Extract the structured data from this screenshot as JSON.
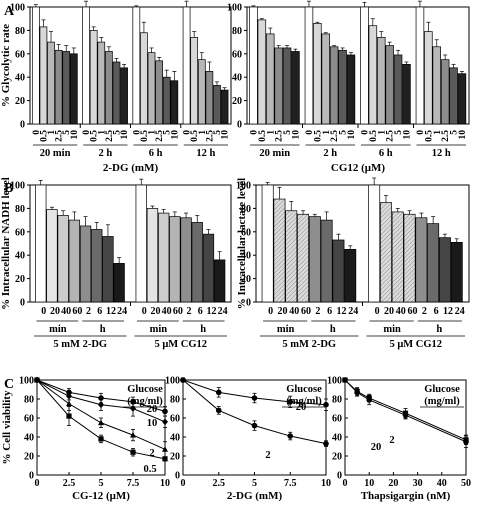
{
  "panel_letters": [
    "A",
    "B",
    "C"
  ],
  "chart_data": [
    {
      "type": "bar",
      "panel": "A",
      "ylabel": "% Glycolytic rate",
      "ylim": [
        0,
        100
      ],
      "yticks": [
        0,
        20,
        40,
        60,
        80,
        100
      ],
      "xlabel": "2-DG (mM)",
      "categories": [
        "0",
        "0.5",
        "1",
        "2.5",
        "5",
        "10"
      ],
      "groups": [
        {
          "label": "20 min",
          "values": [
            100,
            83,
            70,
            63,
            62,
            60
          ],
          "errors": [
            2,
            6,
            9,
            5,
            5,
            5
          ]
        },
        {
          "label": "2 h",
          "values": [
            100,
            80,
            70,
            62,
            53,
            48
          ],
          "errors": [
            5,
            3,
            4,
            4,
            3,
            3
          ]
        },
        {
          "label": "6 h",
          "values": [
            100,
            78,
            61,
            54,
            40,
            37
          ],
          "errors": [
            1,
            9,
            4,
            3,
            6,
            8
          ]
        },
        {
          "label": "12 h",
          "values": [
            100,
            74,
            55,
            45,
            33,
            29
          ],
          "errors": [
            5,
            5,
            6,
            8,
            3,
            2
          ]
        }
      ]
    },
    {
      "type": "bar",
      "panel": "A",
      "ylabel": "",
      "ylim": [
        0,
        100
      ],
      "yticks": [
        0,
        20,
        40,
        60,
        80,
        100
      ],
      "xlabel": "CG12 (μM)",
      "categories": [
        "0",
        "0.5",
        "1",
        "2.5",
        "5",
        "10"
      ],
      "groups": [
        {
          "label": "20 min",
          "values": [
            100,
            89,
            77,
            65,
            65,
            62
          ],
          "errors": [
            1,
            1,
            5,
            2,
            2,
            2
          ]
        },
        {
          "label": "2 h",
          "values": [
            100,
            86,
            77,
            66,
            63,
            59
          ],
          "errors": [
            5,
            1,
            1,
            1,
            2,
            2
          ]
        },
        {
          "label": "6 h",
          "values": [
            100,
            84,
            74,
            67,
            59,
            51
          ],
          "errors": [
            4,
            6,
            5,
            3,
            4,
            2
          ]
        },
        {
          "label": "12 h",
          "values": [
            100,
            79,
            66,
            55,
            48,
            43
          ],
          "errors": [
            5,
            8,
            6,
            4,
            3,
            2
          ]
        }
      ]
    },
    {
      "type": "bar",
      "panel": "B",
      "ylabel": "% Intracellular NADH level",
      "ylim": [
        0,
        100
      ],
      "yticks": [
        0,
        20,
        40,
        60,
        80,
        100
      ],
      "categories": [
        "0",
        "20",
        "40",
        "60",
        "2",
        "6",
        "12",
        "24"
      ],
      "unit_labels": [
        "min",
        "h"
      ],
      "groups": [
        {
          "label": "5 mM 2-DG",
          "values": [
            100,
            79,
            74,
            70,
            65,
            62,
            56,
            33
          ],
          "errors": [
            4,
            2,
            4,
            7,
            8,
            6,
            10,
            5
          ]
        },
        {
          "label": "5 μM CG12",
          "values": [
            100,
            80,
            76,
            73,
            72,
            68,
            58,
            36
          ],
          "errors": [
            5,
            2,
            3,
            4,
            4,
            6,
            4,
            7
          ]
        }
      ]
    },
    {
      "type": "bar",
      "panel": "B",
      "ylabel": "% Intracellular lactate level",
      "ylim": [
        0,
        100
      ],
      "yticks": [
        0,
        20,
        40,
        60,
        80,
        100
      ],
      "categories": [
        "0",
        "20",
        "40",
        "60",
        "2",
        "6",
        "12",
        "24"
      ],
      "unit_labels": [
        "min",
        "h"
      ],
      "groups": [
        {
          "label": "5 mM 2-DG",
          "values": [
            100,
            88,
            78,
            75,
            73,
            70,
            53,
            45
          ],
          "errors": [
            2,
            10,
            8,
            3,
            2,
            7,
            5,
            3
          ]
        },
        {
          "label": "5 μM CG12",
          "values": [
            100,
            85,
            77,
            75,
            72,
            67,
            55,
            51
          ],
          "errors": [
            6,
            6,
            3,
            3,
            4,
            6,
            3,
            3
          ]
        }
      ]
    },
    {
      "type": "line",
      "panel": "C",
      "ylabel": "% Cell viability",
      "xlabel": "CG-12 (μM)",
      "xlim": [
        0,
        10
      ],
      "ylim": [
        0,
        100
      ],
      "xticks": [
        0,
        2.5,
        5,
        7.5,
        10
      ],
      "yticks": [
        0,
        20,
        40,
        60,
        80,
        100
      ],
      "legend_title": "Glucose\n(mg/ml)",
      "series": [
        {
          "name": "20",
          "x": [
            0,
            2.5,
            5,
            7.5,
            10
          ],
          "y": [
            100,
            87,
            81,
            77,
            67
          ],
          "err": [
            2,
            4,
            5,
            5,
            5
          ]
        },
        {
          "name": "10",
          "x": [
            0,
            2.5,
            5,
            7.5,
            10
          ],
          "y": [
            100,
            83,
            74,
            70,
            56
          ],
          "err": [
            2,
            4,
            6,
            8,
            6
          ]
        },
        {
          "name": "2",
          "x": [
            0,
            2.5,
            5,
            7.5,
            10
          ],
          "y": [
            100,
            75,
            55,
            42,
            27
          ],
          "err": [
            2,
            7,
            5,
            6,
            8
          ]
        },
        {
          "name": "0.5",
          "x": [
            0,
            2.5,
            5,
            7.5,
            10
          ],
          "y": [
            100,
            62,
            38,
            24,
            17
          ],
          "err": [
            2,
            10,
            4,
            4,
            2
          ]
        }
      ]
    },
    {
      "type": "line",
      "panel": "C",
      "ylabel": "",
      "xlabel": "2-DG (mM)",
      "xlim": [
        0,
        10
      ],
      "ylim": [
        0,
        100
      ],
      "xticks": [
        0,
        2.5,
        5,
        7.5,
        10
      ],
      "yticks": [
        0,
        20,
        40,
        60,
        80,
        100
      ],
      "legend_title": "Glucose\n(mg/ml)",
      "series": [
        {
          "name": "20",
          "x": [
            0,
            2.5,
            5,
            7.5,
            10
          ],
          "y": [
            100,
            87,
            81,
            77,
            74
          ],
          "err": [
            2,
            5,
            5,
            6,
            6
          ]
        },
        {
          "name": "2",
          "x": [
            0,
            2.5,
            5,
            7.5,
            10
          ],
          "y": [
            100,
            68,
            52,
            41,
            33
          ],
          "err": [
            2,
            4,
            5,
            4,
            3
          ]
        }
      ]
    },
    {
      "type": "line",
      "panel": "C",
      "ylabel": "",
      "xlabel": "Thapsigargin (nM)",
      "xlim": [
        0,
        50
      ],
      "ylim": [
        0,
        100
      ],
      "xticks": [
        0,
        10,
        20,
        30,
        40,
        50
      ],
      "yticks": [
        0,
        20,
        40,
        60,
        80,
        100
      ],
      "legend_title": "Glucose\n(mg/ml)",
      "series": [
        {
          "name": "20",
          "x": [
            0,
            5,
            10,
            25,
            50
          ],
          "y": [
            100,
            87,
            79,
            63,
            35
          ],
          "err": [
            2,
            4,
            5,
            4,
            6
          ]
        },
        {
          "name": "2",
          "x": [
            0,
            5,
            10,
            25,
            50
          ],
          "y": [
            100,
            88,
            81,
            65,
            37
          ],
          "err": [
            2,
            4,
            4,
            5,
            5
          ]
        }
      ]
    }
  ]
}
